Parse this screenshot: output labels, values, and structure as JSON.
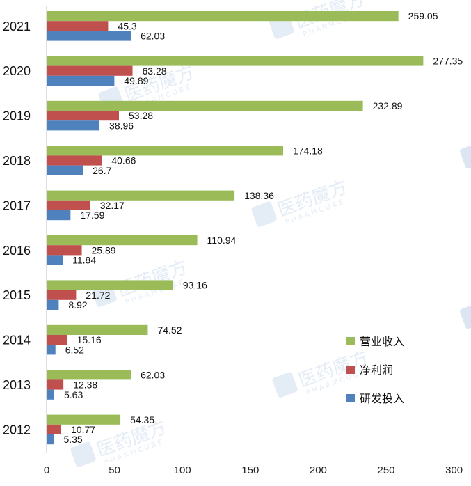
{
  "chart_data": {
    "type": "bar",
    "orientation": "horizontal",
    "categories": [
      "2021",
      "2020",
      "2019",
      "2018",
      "2017",
      "2016",
      "2015",
      "2014",
      "2013",
      "2012"
    ],
    "series": [
      {
        "name": "营业收入",
        "color": "#9bbb59",
        "values": [
          259.05,
          277.35,
          232.89,
          174.18,
          138.36,
          110.94,
          93.16,
          74.52,
          62.03,
          54.35
        ]
      },
      {
        "name": "净利润",
        "color": "#c0504d",
        "values": [
          45.3,
          63.28,
          53.28,
          40.66,
          32.17,
          25.89,
          21.72,
          15.16,
          12.38,
          10.77
        ]
      },
      {
        "name": "研发投入",
        "color": "#4f81bd",
        "values": [
          62.03,
          49.89,
          38.96,
          26.7,
          17.59,
          11.84,
          8.92,
          6.52,
          5.63,
          5.35
        ]
      }
    ],
    "data_labels": {
      "营业收入": [
        "259.05",
        "277.35",
        "232.89",
        "174.18",
        "138.36",
        "110.94",
        "93.16",
        "74.52",
        "62.03",
        "54.35"
      ],
      "净利润": [
        "45.3",
        "63.28",
        "53.28",
        "40.66",
        "32.17",
        "25.89",
        "21.72",
        "15.16",
        "12.38",
        "10.77"
      ],
      "研发投入": [
        "62.03",
        "49.89",
        "38.96",
        "26.7",
        "17.59",
        "11.84",
        "8.92",
        "6.52",
        "5.63",
        "5.35"
      ]
    },
    "x_ticks": [
      "0",
      "50",
      "100",
      "150",
      "200",
      "250",
      "300"
    ],
    "xlim": [
      0,
      300
    ],
    "grid": false,
    "legend_position": "right",
    "title": "",
    "xlabel": "",
    "ylabel": ""
  },
  "watermark": {
    "text": "医药魔方",
    "subtext": "PHARMCUBE"
  }
}
